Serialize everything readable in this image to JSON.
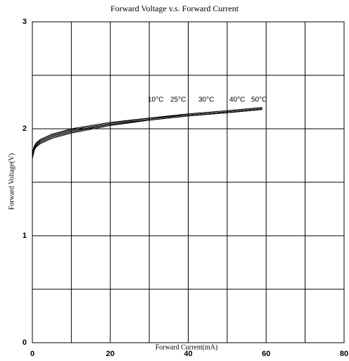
{
  "chart_data": {
    "type": "line",
    "title": "Forward Voltage v.s. Forward Current",
    "x_label": "Forward Current(mA)",
    "y_label": "Forward Voltage(V)",
    "x": [
      0,
      0.5,
      1,
      2,
      5,
      10,
      20,
      30,
      40,
      50,
      59
    ],
    "series": [
      {
        "name": "10°C",
        "color": "#000000",
        "values": [
          1.78,
          1.84,
          1.87,
          1.9,
          1.95,
          2.0,
          2.06,
          2.1,
          2.14,
          2.17,
          2.2
        ]
      },
      {
        "name": "25°C",
        "color": "#000000",
        "values": [
          1.76,
          1.83,
          1.86,
          1.89,
          1.94,
          1.99,
          2.05,
          2.1,
          2.13,
          2.16,
          2.19
        ]
      },
      {
        "name": "30°C",
        "color": "#000000",
        "values": [
          1.75,
          1.82,
          1.85,
          1.88,
          1.93,
          1.98,
          2.04,
          2.09,
          2.13,
          2.16,
          2.19
        ]
      },
      {
        "name": "40°C",
        "color": "#000000",
        "values": [
          1.73,
          1.81,
          1.84,
          1.87,
          1.92,
          1.97,
          2.04,
          2.08,
          2.12,
          2.15,
          2.18
        ]
      },
      {
        "name": "50°C",
        "color": "#000000",
        "values": [
          1.72,
          1.8,
          1.83,
          1.86,
          1.91,
          1.96,
          2.03,
          2.08,
          2.12,
          2.15,
          2.18
        ]
      }
    ],
    "xlim": [
      0,
      80
    ],
    "ylim": [
      0,
      3
    ],
    "xticks": [
      0,
      20,
      40,
      60,
      80
    ],
    "yticks": [
      0,
      1,
      2,
      3
    ],
    "x_minor_grid": [
      10,
      30,
      50,
      70
    ],
    "y_minor_grid": [
      0.5,
      1.5,
      2.5
    ],
    "grid": true
  }
}
